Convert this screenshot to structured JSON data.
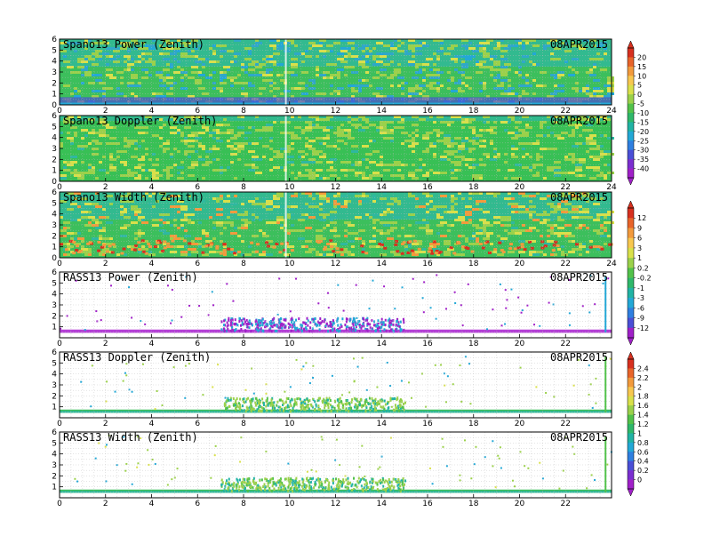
{
  "chart_data": [
    {
      "type": "heatmap",
      "title": "Spano13 Power (Zenith)",
      "date": "08APR2015",
      "x_ticks": [
        "0",
        "2",
        "4",
        "6",
        "8",
        "10",
        "12",
        "14",
        "16",
        "18",
        "20",
        "22",
        "24"
      ],
      "y_ticks": [
        "0",
        "1",
        "2",
        "3",
        "4",
        "5",
        "6"
      ],
      "xlim": [
        0,
        24
      ],
      "ylim": [
        0,
        6
      ],
      "grid": true,
      "colorbar": "power_scale"
    },
    {
      "type": "heatmap",
      "title": "Spano13 Doppler (Zenith)",
      "date": "08APR2015",
      "x_ticks": [
        "0",
        "2",
        "4",
        "6",
        "8",
        "10",
        "12",
        "14",
        "16",
        "18",
        "20",
        "22",
        "24"
      ],
      "y_ticks": [
        "0",
        "1",
        "2",
        "3",
        "4",
        "5",
        "6"
      ],
      "xlim": [
        0,
        24
      ],
      "ylim": [
        0,
        6
      ],
      "grid": true,
      "colorbar": "power_scale"
    },
    {
      "type": "heatmap",
      "title": "Spano13 Width (Zenith)",
      "date": "08APR2015",
      "x_ticks": [
        "0",
        "2",
        "4",
        "6",
        "8",
        "10",
        "12",
        "14",
        "16",
        "18",
        "20",
        "22",
        "24"
      ],
      "y_ticks": [
        "0",
        "1",
        "2",
        "3",
        "4",
        "5",
        "6"
      ],
      "xlim": [
        0,
        24
      ],
      "ylim": [
        0,
        6
      ],
      "grid": true,
      "colorbar": "doppler_scale"
    },
    {
      "type": "heatmap",
      "title": "RASS13 Power (Zenith)",
      "date": "08APR2015",
      "x_ticks": [
        "0",
        "2",
        "4",
        "6",
        "8",
        "10",
        "12",
        "14",
        "16",
        "18",
        "20",
        "22"
      ],
      "y_ticks": [
        "1",
        "2",
        "3",
        "4",
        "5",
        "6"
      ],
      "xlim": [
        0,
        24
      ],
      "ylim": [
        0,
        6
      ],
      "grid": true,
      "colorbar": "doppler_scale"
    },
    {
      "type": "heatmap",
      "title": "RASS13 Doppler (Zenith)",
      "date": "08APR2015",
      "x_ticks": [
        "0",
        "2",
        "4",
        "6",
        "8",
        "10",
        "12",
        "14",
        "16",
        "18",
        "20",
        "22"
      ],
      "y_ticks": [
        "1",
        "2",
        "3",
        "4",
        "5",
        "6"
      ],
      "xlim": [
        0,
        24
      ],
      "ylim": [
        0,
        6
      ],
      "grid": true,
      "colorbar": "width_scale"
    },
    {
      "type": "heatmap",
      "title": "RASS13 Width (Zenith)",
      "date": "08APR2015",
      "x_ticks": [
        "0",
        "2",
        "4",
        "6",
        "8",
        "10",
        "12",
        "14",
        "16",
        "18",
        "20",
        "22"
      ],
      "y_ticks": [
        "1",
        "2",
        "3",
        "4",
        "5",
        "6"
      ],
      "xlim": [
        0,
        24
      ],
      "ylim": [
        0,
        6
      ],
      "grid": true,
      "colorbar": "width_scale"
    }
  ],
  "colorbars": {
    "power_scale": {
      "labels": [
        "20",
        "15",
        "10",
        "5",
        "0",
        "-5",
        "-10",
        "-15",
        "-20",
        "-25",
        "-30",
        "-35",
        "-40"
      ],
      "colors": [
        "#d7301f",
        "#e8642a",
        "#f29a3c",
        "#f7c74f",
        "#d9e04a",
        "#9bd14a",
        "#52c24a",
        "#2fb86a",
        "#21b3a4",
        "#23a8d6",
        "#2f7fe0",
        "#4a4fd6",
        "#7b2fd0",
        "#a020c8"
      ]
    },
    "doppler_scale": {
      "labels": [
        "12",
        "9",
        "6",
        "3",
        "1",
        "0.2",
        "-0.2",
        "-1",
        "-3",
        "-6",
        "-9",
        "-12"
      ],
      "colors": [
        "#d7301f",
        "#e8642a",
        "#f29a3c",
        "#f7c74f",
        "#d9e04a",
        "#9bd14a",
        "#52c24a",
        "#2fb86a",
        "#21b3a4",
        "#23a8d6",
        "#2f7fe0",
        "#4a4fd6",
        "#a020c8"
      ]
    },
    "width_scale": {
      "labels": [
        "2.4",
        "2.2",
        "2",
        "1.8",
        "1.6",
        "1.4",
        "1.2",
        "1",
        "0.8",
        "0.6",
        "0.4",
        "0.2",
        "0"
      ],
      "colors": [
        "#d7301f",
        "#e8642a",
        "#f29a3c",
        "#f7c74f",
        "#d9e04a",
        "#9bd14a",
        "#52c24a",
        "#2fb86a",
        "#21b3a4",
        "#23a8d6",
        "#2f7fe0",
        "#4a4fd6",
        "#7b2fd0",
        "#a020c8"
      ]
    }
  }
}
